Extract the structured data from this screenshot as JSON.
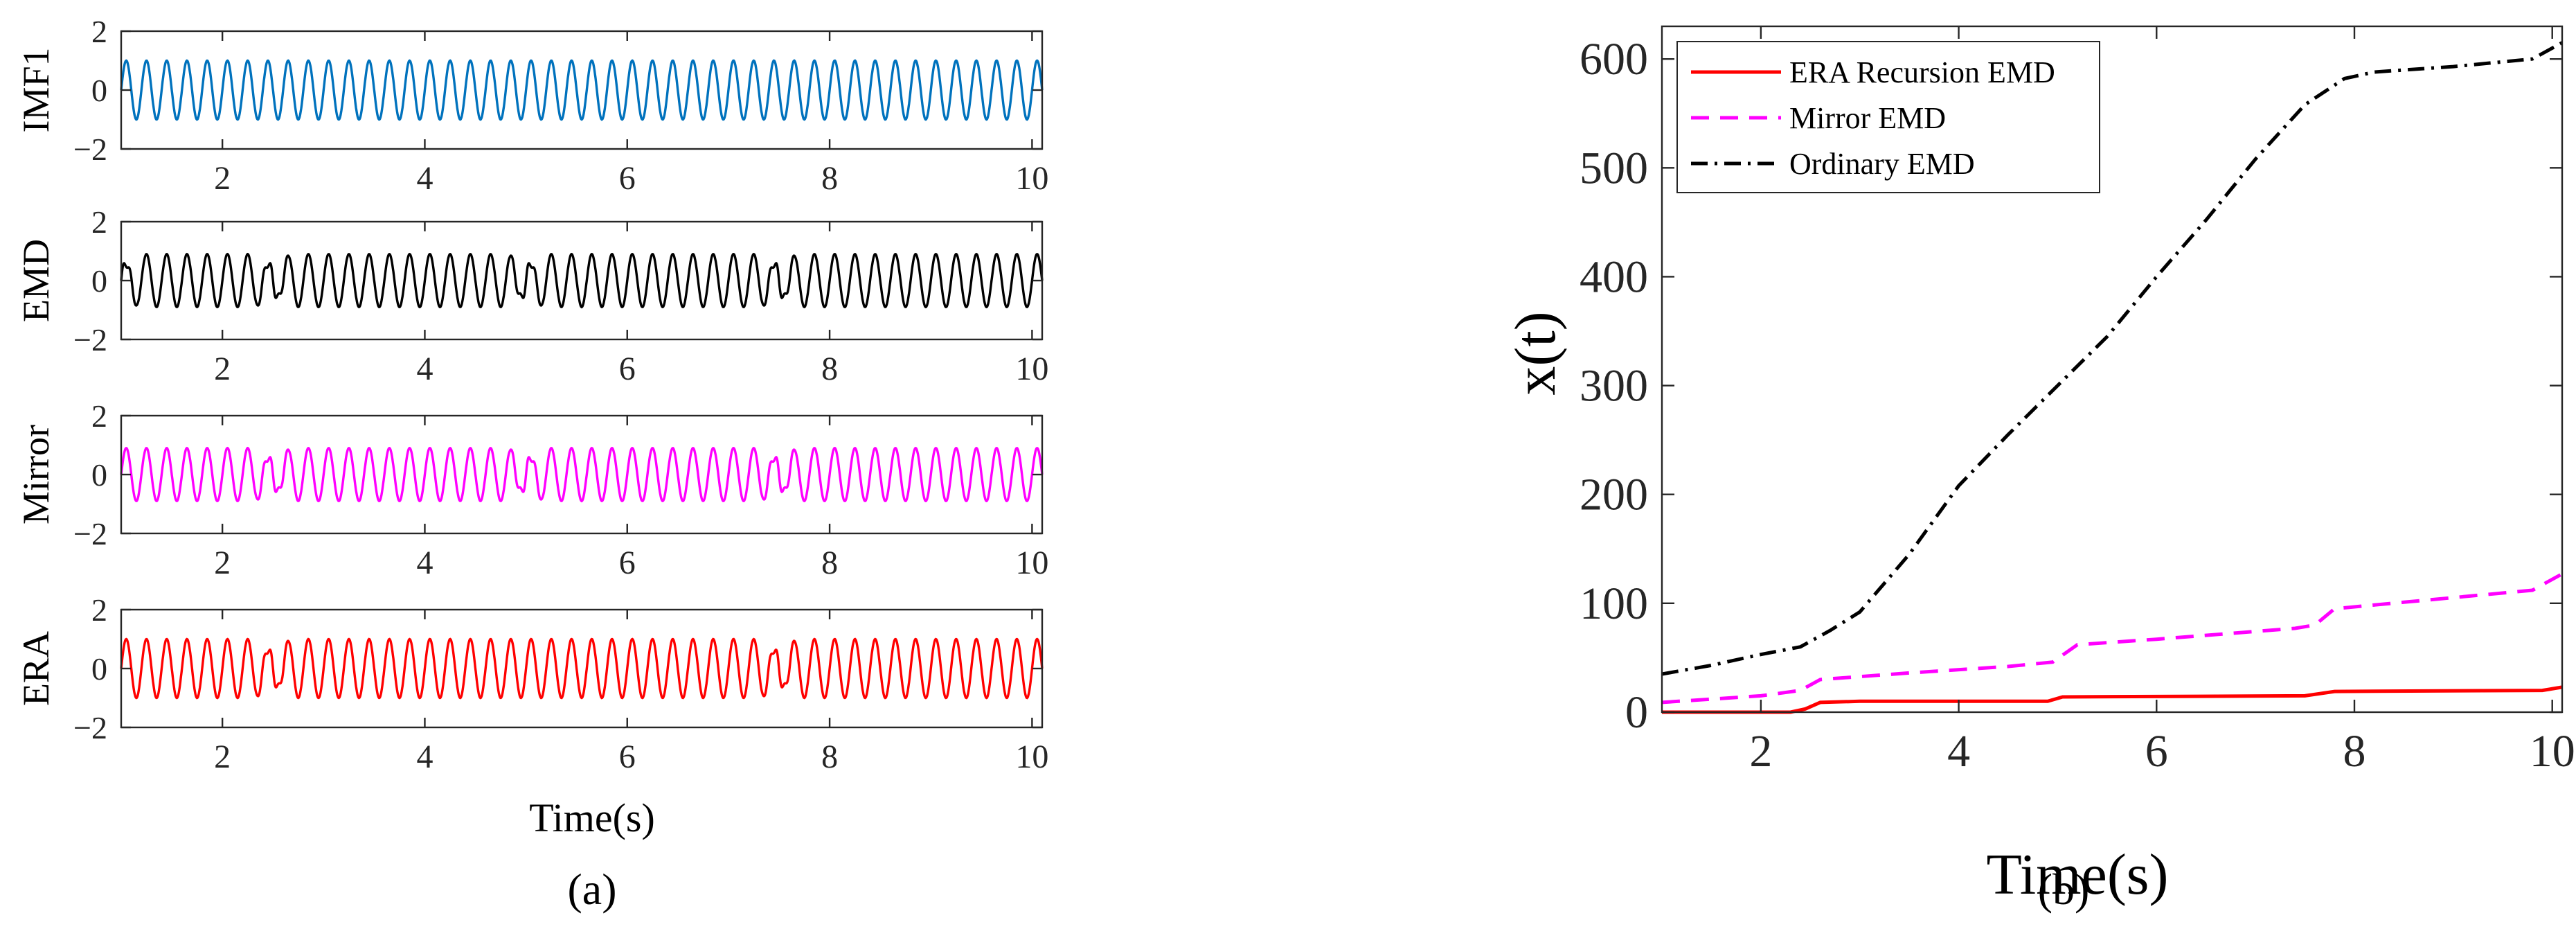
{
  "panel_labels": [
    "(a)",
    "(b)"
  ],
  "chart_data": [
    {
      "type": "line",
      "title": "",
      "subplots": [
        {
          "ylabel": "IMF1",
          "color": "#0072BD",
          "xlim": [
            1,
            10.1
          ],
          "ylim": [
            -2,
            2
          ],
          "xticks": [
            "2",
            "4",
            "6",
            "8",
            "10"
          ],
          "yticks": [
            "2",
            "0",
            "-2"
          ],
          "frequency_hz": 5,
          "amplitude": 1.0,
          "glitch_times": []
        },
        {
          "ylabel": "EMD",
          "color": "#000000",
          "xlim": [
            1,
            10.1
          ],
          "ylim": [
            -2,
            2
          ],
          "xticks": [
            "2",
            "4",
            "6",
            "8",
            "10"
          ],
          "yticks": [
            "2",
            "0",
            "-2"
          ],
          "frequency_hz": 5,
          "amplitude": 0.9,
          "glitch_times": [
            1.0,
            2.5,
            5.0,
            7.5
          ]
        },
        {
          "ylabel": "Mirror",
          "color": "#FF00FF",
          "xlim": [
            1,
            10.1
          ],
          "ylim": [
            -2,
            2
          ],
          "xticks": [
            "2",
            "4",
            "6",
            "8",
            "10"
          ],
          "yticks": [
            "2",
            "0",
            "-2"
          ],
          "frequency_hz": 5,
          "amplitude": 0.9,
          "glitch_times": [
            2.5,
            5.0,
            7.5
          ]
        },
        {
          "ylabel": "ERA",
          "color": "#FF0000",
          "xlim": [
            1,
            10.1
          ],
          "ylim": [
            -2,
            2
          ],
          "xticks": [
            "2",
            "4",
            "6",
            "8",
            "10"
          ],
          "yticks": [
            "2",
            "0",
            "-2"
          ],
          "frequency_hz": 5,
          "amplitude": 1.0,
          "glitch_times": [
            2.5,
            7.5
          ]
        }
      ],
      "xlabel": "Time(s)"
    },
    {
      "type": "line",
      "title": "",
      "xlabel": "Time(s)",
      "ylabel": "x(t)",
      "xlim": [
        1,
        10.1
      ],
      "ylim": [
        0,
        630
      ],
      "xticks": [
        "2",
        "4",
        "6",
        "8",
        "10"
      ],
      "yticks": [
        "0",
        "100",
        "200",
        "300",
        "400",
        "500",
        "600"
      ],
      "legend_position": "top-left",
      "series": [
        {
          "name": "ERA Recursion EMD",
          "color": "#FF0000",
          "dash": "solid",
          "points": [
            [
              1,
              0
            ],
            [
              2.3,
              0
            ],
            [
              2.45,
              3
            ],
            [
              2.6,
              9
            ],
            [
              3.0,
              10
            ],
            [
              4.9,
              10
            ],
            [
              5.05,
              14
            ],
            [
              7.5,
              15
            ],
            [
              7.8,
              19
            ],
            [
              9.9,
              20
            ],
            [
              10.1,
              23
            ]
          ]
        },
        {
          "name": "Mirror EMD",
          "color": "#FF00FF",
          "dash": "dashed",
          "points": [
            [
              1,
              9
            ],
            [
              2.0,
              15
            ],
            [
              2.4,
              20
            ],
            [
              2.6,
              30
            ],
            [
              3.5,
              36
            ],
            [
              4.5,
              42
            ],
            [
              4.95,
              46
            ],
            [
              5.2,
              62
            ],
            [
              6.0,
              67
            ],
            [
              7.4,
              77
            ],
            [
              7.6,
              80
            ],
            [
              7.8,
              95
            ],
            [
              8.5,
              101
            ],
            [
              9.8,
              112
            ],
            [
              10.1,
              127
            ]
          ]
        },
        {
          "name": "Ordinary EMD",
          "color": "#000000",
          "dash": "dashdot",
          "points": [
            [
              1,
              35
            ],
            [
              1.5,
              43
            ],
            [
              2.0,
              53
            ],
            [
              2.4,
              60
            ],
            [
              2.7,
              75
            ],
            [
              3.0,
              92
            ],
            [
              3.5,
              145
            ],
            [
              4.0,
              208
            ],
            [
              4.5,
              255
            ],
            [
              5.0,
              300
            ],
            [
              5.5,
              345
            ],
            [
              6.0,
              400
            ],
            [
              6.5,
              452
            ],
            [
              7.0,
              508
            ],
            [
              7.5,
              558
            ],
            [
              7.9,
              582
            ],
            [
              8.2,
              588
            ],
            [
              9.0,
              593
            ],
            [
              9.8,
              600
            ],
            [
              10.1,
              615
            ]
          ]
        }
      ]
    }
  ]
}
